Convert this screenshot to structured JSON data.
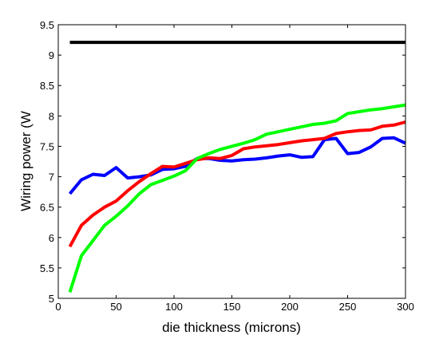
{
  "chart_data": {
    "type": "line",
    "title": "",
    "xlabel": "die thickness (microns)",
    "ylabel": "Wiring power (W",
    "xlim": [
      0,
      300
    ],
    "ylim": [
      5,
      9.5
    ],
    "grid": false,
    "legend": "none",
    "x_ticks": [
      0,
      50,
      100,
      150,
      200,
      250,
      300
    ],
    "y_ticks": [
      5,
      5.5,
      6,
      6.5,
      7,
      7.5,
      8,
      8.5,
      9,
      9.5
    ],
    "x_tick_labels": [
      "0",
      "50",
      "100",
      "150",
      "200",
      "250",
      "300"
    ],
    "y_tick_labels": [
      "5",
      "5.5",
      "6",
      "6.5",
      "7",
      "7.5",
      "8",
      "8.5",
      "9",
      "9.5"
    ],
    "series": [
      {
        "color": "#000000",
        "x": [
          10,
          300
        ],
        "y": [
          9.21,
          9.21
        ]
      },
      {
        "color": "#0000ff",
        "x": [
          10,
          20,
          30,
          40,
          50,
          60,
          70,
          80,
          90,
          100,
          110,
          120,
          130,
          140,
          150,
          160,
          170,
          180,
          190,
          200,
          210,
          220,
          230,
          240,
          250,
          260,
          270,
          280,
          290,
          300
        ],
        "y": [
          6.72,
          6.95,
          7.04,
          7.02,
          7.15,
          6.98,
          7.0,
          7.03,
          7.12,
          7.13,
          7.17,
          7.3,
          7.3,
          7.27,
          7.26,
          7.28,
          7.29,
          7.31,
          7.34,
          7.36,
          7.32,
          7.33,
          7.61,
          7.63,
          7.38,
          7.4,
          7.49,
          7.63,
          7.64,
          7.55
        ]
      },
      {
        "color": "#ff0000",
        "x": [
          10,
          20,
          30,
          40,
          50,
          60,
          70,
          80,
          90,
          100,
          110,
          120,
          130,
          140,
          150,
          160,
          170,
          180,
          190,
          200,
          210,
          220,
          230,
          240,
          250,
          260,
          270,
          280,
          290,
          300
        ],
        "y": [
          5.85,
          6.2,
          6.37,
          6.5,
          6.6,
          6.77,
          6.92,
          7.05,
          7.17,
          7.16,
          7.22,
          7.28,
          7.31,
          7.3,
          7.35,
          7.46,
          7.49,
          7.51,
          7.53,
          7.56,
          7.59,
          7.61,
          7.63,
          7.71,
          7.74,
          7.76,
          7.77,
          7.83,
          7.85,
          7.9
        ]
      },
      {
        "color": "#00ff00",
        "x": [
          10,
          20,
          30,
          40,
          50,
          60,
          70,
          80,
          90,
          100,
          110,
          120,
          130,
          140,
          150,
          160,
          170,
          180,
          190,
          200,
          210,
          220,
          230,
          240,
          250,
          260,
          270,
          280,
          290,
          300
        ],
        "y": [
          5.1,
          5.7,
          5.95,
          6.2,
          6.35,
          6.52,
          6.72,
          6.87,
          6.94,
          7.01,
          7.1,
          7.3,
          7.38,
          7.45,
          7.5,
          7.55,
          7.61,
          7.7,
          7.74,
          7.78,
          7.82,
          7.86,
          7.88,
          7.92,
          8.04,
          8.07,
          8.1,
          8.12,
          8.15,
          8.18
        ]
      }
    ]
  }
}
